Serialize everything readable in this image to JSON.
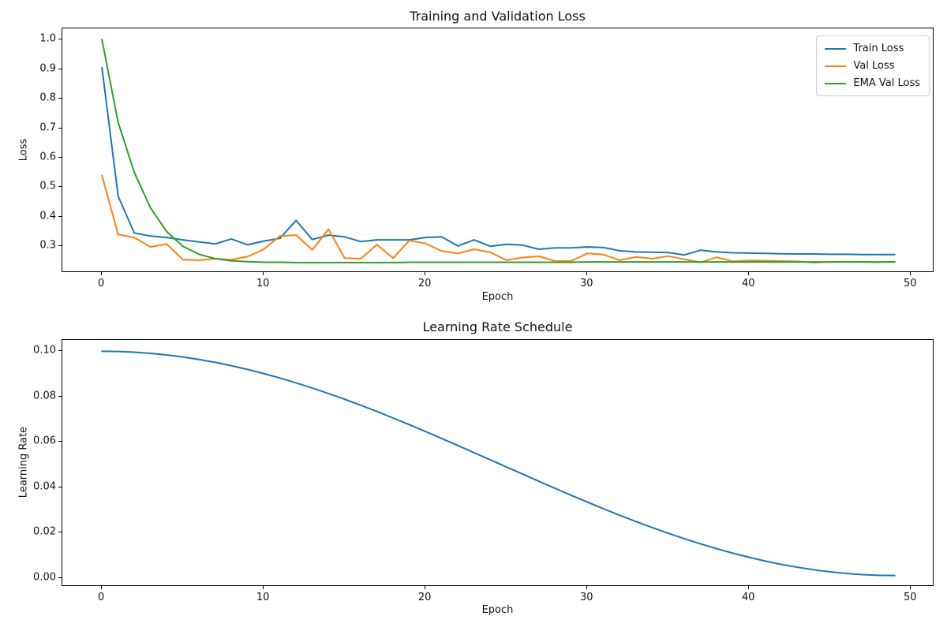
{
  "figure": {
    "background": "#ffffff"
  },
  "chart_data": [
    {
      "type": "line",
      "title": "Training and Validation Loss",
      "xlabel": "Epoch",
      "ylabel": "Loss",
      "xlim": [
        -2.45,
        51.45
      ],
      "ylim": [
        0.21,
        1.038
      ],
      "xticks": [
        0,
        10,
        20,
        30,
        40,
        50
      ],
      "yticks": [
        0.3,
        0.4,
        0.5,
        0.6,
        0.7,
        0.8,
        0.9,
        1.0
      ],
      "ytick_decimals": 1,
      "grid": false,
      "legend_position": "upper right",
      "x": [
        0,
        1,
        2,
        3,
        4,
        5,
        6,
        7,
        8,
        9,
        10,
        11,
        12,
        13,
        14,
        15,
        16,
        17,
        18,
        19,
        20,
        21,
        22,
        23,
        24,
        25,
        26,
        27,
        28,
        29,
        30,
        31,
        32,
        33,
        34,
        35,
        36,
        37,
        38,
        39,
        40,
        41,
        42,
        43,
        44,
        45,
        46,
        47,
        48,
        49
      ],
      "series": [
        {
          "name": "Train Loss",
          "color": "#1f77b4",
          "values": [
            0.905,
            0.47,
            0.345,
            0.335,
            0.33,
            0.322,
            0.315,
            0.308,
            0.325,
            0.305,
            0.318,
            0.327,
            0.388,
            0.323,
            0.338,
            0.332,
            0.316,
            0.322,
            0.322,
            0.322,
            0.33,
            0.332,
            0.301,
            0.322,
            0.3,
            0.307,
            0.304,
            0.29,
            0.295,
            0.295,
            0.298,
            0.296,
            0.285,
            0.281,
            0.28,
            0.279,
            0.271,
            0.287,
            0.281,
            0.278,
            0.277,
            0.276,
            0.275,
            0.274,
            0.274,
            0.273,
            0.273,
            0.272,
            0.272,
            0.272
          ]
        },
        {
          "name": "Val Loss",
          "color": "#ff7f0e",
          "values": [
            0.54,
            0.34,
            0.33,
            0.298,
            0.308,
            0.255,
            0.253,
            0.258,
            0.255,
            0.265,
            0.29,
            0.335,
            0.338,
            0.288,
            0.358,
            0.26,
            0.258,
            0.306,
            0.26,
            0.32,
            0.31,
            0.284,
            0.276,
            0.29,
            0.28,
            0.253,
            0.262,
            0.266,
            0.25,
            0.25,
            0.276,
            0.272,
            0.253,
            0.264,
            0.258,
            0.267,
            0.256,
            0.246,
            0.263,
            0.249,
            0.252,
            0.251,
            0.25,
            0.249,
            0.245,
            0.247,
            0.248,
            0.247,
            0.246,
            0.248
          ]
        },
        {
          "name": "EMA Val Loss",
          "color": "#2ca02c",
          "values": [
            1.0,
            0.72,
            0.55,
            0.43,
            0.35,
            0.3,
            0.273,
            0.258,
            0.251,
            0.248,
            0.246,
            0.246,
            0.245,
            0.245,
            0.245,
            0.245,
            0.245,
            0.245,
            0.245,
            0.246,
            0.246,
            0.246,
            0.246,
            0.246,
            0.246,
            0.246,
            0.246,
            0.246,
            0.246,
            0.246,
            0.247,
            0.247,
            0.247,
            0.247,
            0.247,
            0.247,
            0.247,
            0.247,
            0.247,
            0.247,
            0.247,
            0.247,
            0.247,
            0.247,
            0.247,
            0.247,
            0.247,
            0.247,
            0.247,
            0.247
          ]
        }
      ]
    },
    {
      "type": "line",
      "title": "Learning Rate Schedule",
      "xlabel": "Epoch",
      "ylabel": "Learning Rate",
      "xlim": [
        -2.45,
        51.45
      ],
      "ylim": [
        -0.004,
        0.105
      ],
      "xticks": [
        0,
        10,
        20,
        30,
        40,
        50
      ],
      "yticks": [
        0.0,
        0.02,
        0.04,
        0.06,
        0.08,
        0.1
      ],
      "ytick_decimals": 2,
      "grid": false,
      "x": [
        0,
        1,
        2,
        3,
        4,
        5,
        6,
        7,
        8,
        9,
        10,
        11,
        12,
        13,
        14,
        15,
        16,
        17,
        18,
        19,
        20,
        21,
        22,
        23,
        24,
        25,
        26,
        27,
        28,
        29,
        30,
        31,
        32,
        33,
        34,
        35,
        36,
        37,
        38,
        39,
        40,
        41,
        42,
        43,
        44,
        45,
        46,
        47,
        48,
        49
      ],
      "series": [
        {
          "name": "Learning Rate",
          "color": "#1f77b4",
          "values": [
            0.1,
            0.0999,
            0.09959,
            0.09909,
            0.09838,
            0.09748,
            0.09638,
            0.0951,
            0.09363,
            0.09199,
            0.09017,
            0.08819,
            0.08606,
            0.08378,
            0.08136,
            0.07882,
            0.07616,
            0.0734,
            0.07054,
            0.0676,
            0.06458,
            0.06151,
            0.0584,
            0.05525,
            0.05209,
            0.04891,
            0.04575,
            0.0426,
            0.03949,
            0.03642,
            0.0334,
            0.03046,
            0.0276,
            0.02484,
            0.02218,
            0.01964,
            0.01722,
            0.01494,
            0.01281,
            0.01083,
            0.00901,
            0.00737,
            0.0059,
            0.00462,
            0.00352,
            0.00262,
            0.00191,
            0.00141,
            0.0011,
            0.001
          ]
        }
      ]
    }
  ]
}
